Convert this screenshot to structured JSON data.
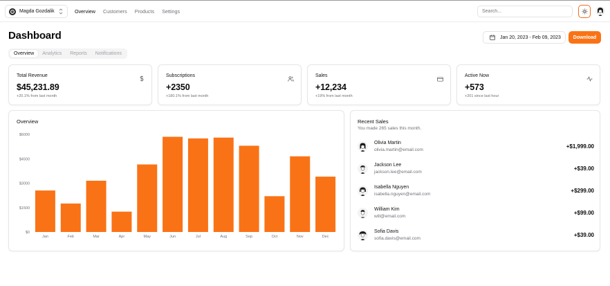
{
  "header": {
    "team_name": "Magda Gozdalik",
    "nav": [
      "Overview",
      "Customers",
      "Products",
      "Settings"
    ],
    "search_placeholder": "Search..."
  },
  "page": {
    "title": "Dashboard",
    "date_range": "Jan 20, 2023 - Feb 09, 2023",
    "download_label": "Download",
    "tabs": [
      "Overview",
      "Analytics",
      "Reports",
      "Notifications"
    ],
    "active_tab": "Overview"
  },
  "stats": [
    {
      "title": "Total Revenue",
      "value": "$45,231.89",
      "sub": "+20.1% from last month",
      "icon": "dollar-icon"
    },
    {
      "title": "Subscriptions",
      "value": "+2350",
      "sub": "+180.1% from last month",
      "icon": "users-icon"
    },
    {
      "title": "Sales",
      "value": "+12,234",
      "sub": "+19% from last month",
      "icon": "credit-card-icon"
    },
    {
      "title": "Active Now",
      "value": "+573",
      "sub": "+201 since last hour",
      "icon": "activity-icon"
    }
  ],
  "overview": {
    "title": "Overview"
  },
  "chart_data": {
    "type": "bar",
    "categories": [
      "Jan",
      "Feb",
      "Mar",
      "Apr",
      "May",
      "Jun",
      "Jul",
      "Aug",
      "Sep",
      "Oct",
      "Nov",
      "Dec"
    ],
    "values": [
      2550,
      1750,
      3150,
      1250,
      4150,
      5850,
      5750,
      5800,
      5300,
      2200,
      4650,
      3400
    ],
    "ytick_labels": [
      "$0",
      "$1500",
      "$3000",
      "$4500",
      "$6000"
    ],
    "yticks": [
      0,
      1500,
      3000,
      4500,
      6000
    ],
    "ylim": [
      0,
      6000
    ],
    "bar_color": "#f97316",
    "title": "",
    "xlabel": "",
    "ylabel": "",
    "grid": false
  },
  "recent_sales": {
    "title": "Recent Sales",
    "subtitle": "You made 265 sales this month.",
    "items": [
      {
        "name": "Olivia Martin",
        "email": "olivia.martin@email.com",
        "amount": "+$1,999.00"
      },
      {
        "name": "Jackson Lee",
        "email": "jackson.lee@email.com",
        "amount": "+$39.00"
      },
      {
        "name": "Isabella Nguyen",
        "email": "isabella.nguyen@email.com",
        "amount": "+$299.00"
      },
      {
        "name": "William Kim",
        "email": "will@email.com",
        "amount": "+$99.00"
      },
      {
        "name": "Sofia Davis",
        "email": "sofia.davis@email.com",
        "amount": "+$39.00"
      }
    ]
  },
  "colors": {
    "accent": "#f97316",
    "muted_text": "#71717a",
    "border": "#e6e6e6"
  }
}
